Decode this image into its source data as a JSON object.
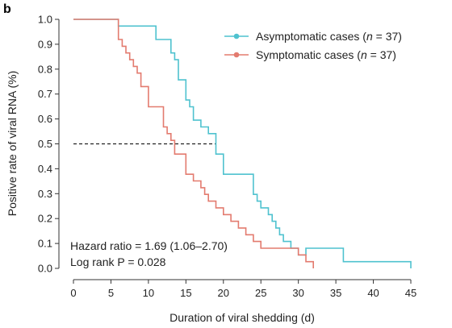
{
  "panel_label": "b",
  "chart_data": {
    "type": "line",
    "step": true,
    "xlabel": "Duration of viral shedding (d)",
    "ylabel": "Positive rate of viral RNA (%)",
    "xlim": [
      0,
      45
    ],
    "ylim": [
      0,
      1.0
    ],
    "xticks": [
      0,
      5,
      10,
      15,
      20,
      25,
      30,
      35,
      40,
      45
    ],
    "yticks": [
      0.0,
      0.1,
      0.2,
      0.3,
      0.4,
      0.5,
      0.6,
      0.7,
      0.8,
      0.9,
      1.0
    ],
    "xtick_labels": [
      "0",
      "5",
      "10",
      "15",
      "20",
      "25",
      "30",
      "35",
      "40",
      "45"
    ],
    "ytick_labels": [
      "0.0",
      "0.1",
      "0.2",
      "0.3",
      "0.4",
      "0.5",
      "0.6",
      "0.7",
      "0.8",
      "0.9",
      "1.0"
    ],
    "grid": false,
    "legend_position": "top-right",
    "median_reference": {
      "y": 0.5,
      "x_end": 19
    },
    "series": [
      {
        "name": "Asymptomatic cases (n = 37)",
        "legend_prefix": "Asymptomatic cases (",
        "legend_n": "n",
        "legend_suffix": " = 37)",
        "color": "#4fc2cf",
        "x": [
          0,
          6,
          11,
          13,
          13.5,
          14,
          15,
          15.5,
          16,
          17,
          18,
          19,
          20,
          24,
          24.5,
          25,
          26,
          26.5,
          27,
          27.5,
          28,
          29,
          30,
          31,
          36,
          45
        ],
        "y": [
          1.0,
          0.973,
          0.919,
          0.865,
          0.838,
          0.757,
          0.676,
          0.649,
          0.595,
          0.568,
          0.541,
          0.459,
          0.378,
          0.297,
          0.27,
          0.243,
          0.216,
          0.189,
          0.162,
          0.135,
          0.108,
          0.081,
          0.054,
          0.081,
          0.027,
          0.0
        ]
      },
      {
        "name": "Symptomatic cases (n = 37)",
        "legend_prefix": "Symptomatic cases (",
        "legend_n": "n",
        "legend_suffix": " = 37)",
        "color": "#e37b6f",
        "x": [
          0,
          6,
          6.5,
          7,
          7.5,
          8,
          8.5,
          9,
          10,
          12,
          12.5,
          13,
          13.5,
          15,
          16,
          17,
          17.5,
          18,
          19,
          20,
          21,
          22,
          23,
          23.5,
          24,
          25,
          26,
          26.5,
          27,
          28,
          29,
          30,
          31,
          32
        ],
        "y": [
          1.0,
          0.919,
          0.892,
          0.865,
          0.838,
          0.811,
          0.784,
          0.73,
          0.649,
          0.568,
          0.541,
          0.514,
          0.459,
          0.378,
          0.351,
          0.324,
          0.297,
          0.27,
          0.243,
          0.216,
          0.189,
          0.162,
          0.135,
          0.135,
          0.108,
          0.081,
          0.081,
          0.081,
          0.081,
          0.081,
          0.081,
          0.054,
          0.027,
          0.0
        ]
      }
    ],
    "annotations": [
      "Hazard ratio = 1.69 (1.06–2.70)",
      "Log rank P = 0.028"
    ]
  }
}
